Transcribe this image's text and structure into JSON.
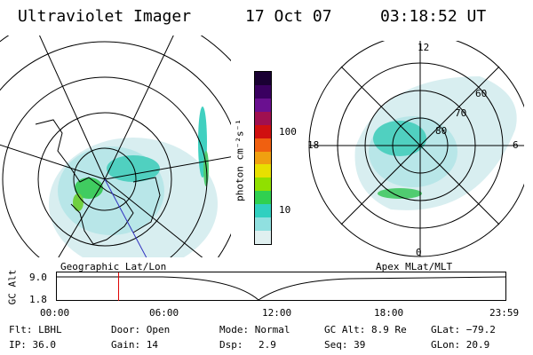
{
  "header": {
    "instrument": "Ultraviolet Imager",
    "date": "17 Oct 07",
    "time": "03:18:52 UT"
  },
  "geo_panel": {
    "label": "Geographic Lat/Lon"
  },
  "colorbar": {
    "unit_label": "photon cm⁻²s⁻¹",
    "ticks": [
      "100",
      "10"
    ],
    "colors": [
      "#1a0033",
      "#3a0060",
      "#6a1090",
      "#a01050",
      "#d01010",
      "#f06010",
      "#f0a010",
      "#e8e000",
      "#90e000",
      "#30d050",
      "#30d0c0",
      "#90e0e0",
      "#e0f0f0"
    ]
  },
  "apex_panel": {
    "label": "Apex MLat/MLT",
    "mlt_labels": [
      "12",
      "18",
      "6",
      "0"
    ],
    "mlat_labels": [
      "60",
      "70",
      "80"
    ]
  },
  "altitude_plot": {
    "ylabel": "GC Alt",
    "ytick_top": "9.0",
    "ytick_bottom": "1.8",
    "xticks": [
      "00:00",
      "06:00",
      "12:00",
      "18:00",
      "23:59"
    ],
    "current_time_fraction": 0.139
  },
  "status": {
    "flt": "Flt: LBHL",
    "ip": "IP: 36.0",
    "door": "Door: Open",
    "gain": "Gain: 14",
    "mode": "Mode: Normal",
    "dsp_label": "Dsp:",
    "dsp_value": "2.9",
    "gcalt": "GC Alt: 8.9 Re",
    "seq": "Seq: 39",
    "glat": "GLat: −79.2",
    "glon": "GLon:  20.9"
  }
}
